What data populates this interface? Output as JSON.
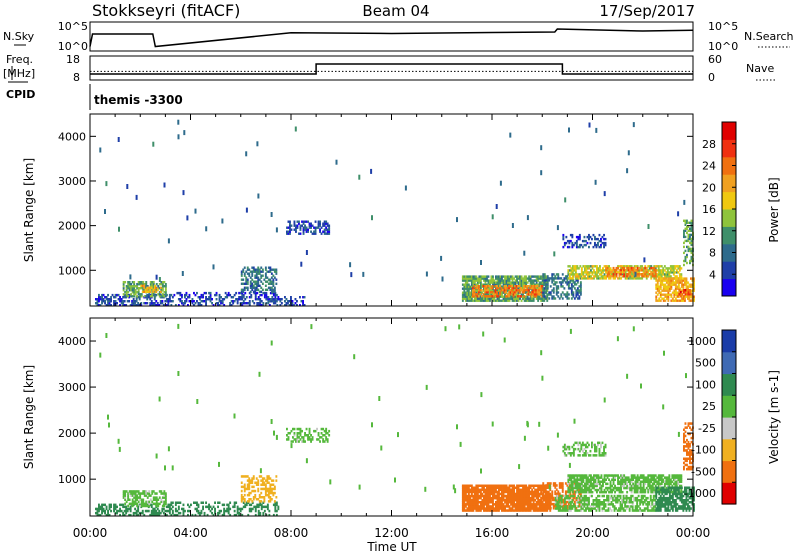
{
  "header": {
    "station": "Stokkseyri (fitACF)",
    "beam": "Beam 04",
    "date": "17/Sep/2017"
  },
  "strip_panels": {
    "nsky_label": "N.Sky",
    "nsky_ticks": [
      "10^5",
      "10^0"
    ],
    "nsearch_label": "N.Search",
    "nsearch_ticks": [
      "10^5",
      "10^0"
    ],
    "freq_label": "Freq.",
    "freq_unit": "[MHz]",
    "freq_ticks": [
      "18",
      "8"
    ],
    "nave_label": "Nave",
    "nave_ticks": [
      "60",
      "0"
    ],
    "cpid_label": "CPID",
    "cpid_value": "themis -3300"
  },
  "axes": {
    "ylabel": "Slant Range [km]",
    "xlabel": "Time UT",
    "y_ticks": [
      "4000",
      "3000",
      "2000",
      "1000"
    ],
    "x_ticks": [
      "00:00",
      "04:00",
      "08:00",
      "12:00",
      "16:00",
      "20:00",
      "00:00"
    ]
  },
  "colorbars": {
    "power": {
      "label": "Power [dB]",
      "ticks": [
        "28",
        "24",
        "20",
        "16",
        "12",
        "8",
        "4"
      ],
      "colors": [
        "#1a00f0",
        "#1f3fa8",
        "#2e6b8c",
        "#3f8f6a",
        "#8fc43c",
        "#f0c810",
        "#f0a020",
        "#f07010",
        "#f03010",
        "#e00000"
      ]
    },
    "velocity": {
      "label": "Velocity [m s-1]",
      "ticks": [
        "1000",
        "500",
        "100",
        "25",
        "-25",
        "-100",
        "-500",
        "-1000"
      ],
      "colors": [
        "#1a3ca8",
        "#3f6ab4",
        "#2f8a50",
        "#55b83c",
        "#c8c8c8",
        "#f0b020",
        "#f07010",
        "#e00000"
      ]
    }
  },
  "chart_data": [
    {
      "type": "line",
      "title": "N.Sky / N.Search",
      "x_unit": "hours UT",
      "xlim": [
        0,
        24
      ],
      "series": [
        {
          "name": "N.Sky",
          "x": [
            0,
            0.1,
            2.5,
            2.6,
            8,
            12,
            16,
            18.5,
            18.6,
            22,
            24
          ],
          "y": [
            0.1,
            0.6,
            0.6,
            0.1,
            0.65,
            0.62,
            0.66,
            0.68,
            0.8,
            0.72,
            0.75
          ]
        }
      ]
    },
    {
      "type": "line",
      "title": "Freq / Nave",
      "xlim": [
        0,
        24
      ],
      "series": [
        {
          "name": "Freq. [MHz]",
          "x": [
            0,
            9,
            9,
            18.8,
            18.8,
            24
          ],
          "y": [
            10,
            10,
            15,
            15,
            10,
            10
          ]
        },
        {
          "name": "Nave",
          "x": [
            0,
            24
          ],
          "y": [
            20,
            20
          ]
        }
      ]
    },
    {
      "type": "heatmap",
      "title": "Power [dB]",
      "xlabel": "Time UT",
      "ylabel": "Slant Range [km]",
      "xlim": [
        0,
        24
      ],
      "ylim": [
        200,
        4500
      ],
      "blobs": [
        {
          "t0": 0.2,
          "t1": 3.2,
          "r0": 200,
          "r1": 450,
          "level": 4,
          "density": 0.55
        },
        {
          "t0": 1.3,
          "t1": 3.0,
          "r0": 400,
          "r1": 750,
          "level": 12,
          "density": 0.6
        },
        {
          "t0": 2.0,
          "t1": 2.8,
          "r0": 500,
          "r1": 650,
          "level": 20,
          "density": 0.55
        },
        {
          "t0": 3.2,
          "t1": 7.5,
          "r0": 200,
          "r1": 500,
          "level": 4,
          "density": 0.45
        },
        {
          "t0": 6.0,
          "t1": 7.4,
          "r0": 500,
          "r1": 1050,
          "level": 8,
          "density": 0.5
        },
        {
          "t0": 7.0,
          "t1": 8.5,
          "r0": 200,
          "r1": 400,
          "level": 4,
          "density": 0.4
        },
        {
          "t0": 7.8,
          "t1": 9.5,
          "r0": 1800,
          "r1": 2100,
          "level": 4,
          "density": 0.5
        },
        {
          "t0": 14.8,
          "t1": 18.2,
          "r0": 300,
          "r1": 850,
          "level": 12,
          "density": 0.85
        },
        {
          "t0": 15.2,
          "t1": 18.0,
          "r0": 400,
          "r1": 650,
          "level": 24,
          "density": 0.6
        },
        {
          "t0": 18.0,
          "t1": 19.5,
          "r0": 350,
          "r1": 900,
          "level": 8,
          "density": 0.5
        },
        {
          "t0": 19.0,
          "t1": 23.5,
          "r0": 800,
          "r1": 1100,
          "level": 16,
          "density": 0.7
        },
        {
          "t0": 20.5,
          "t1": 22.5,
          "r0": 850,
          "r1": 1050,
          "level": 24,
          "density": 0.55
        },
        {
          "t0": 22.5,
          "t1": 24.0,
          "r0": 300,
          "r1": 800,
          "level": 20,
          "density": 0.75
        },
        {
          "t0": 23.3,
          "t1": 23.9,
          "r0": 400,
          "r1": 550,
          "level": 28,
          "density": 0.5
        },
        {
          "t0": 18.8,
          "t1": 20.5,
          "r0": 1500,
          "r1": 1800,
          "level": 4,
          "density": 0.45
        },
        {
          "t0": 23.6,
          "t1": 24.0,
          "r0": 1100,
          "r1": 2100,
          "level": 12,
          "density": 0.5
        }
      ]
    },
    {
      "type": "heatmap",
      "title": "Velocity [m s-1]",
      "xlabel": "Time UT",
      "ylabel": "Slant Range [km]",
      "xlim": [
        0,
        24
      ],
      "ylim": [
        200,
        4500
      ],
      "blobs": [
        {
          "t0": 0.2,
          "t1": 3.2,
          "r0": 200,
          "r1": 450,
          "level": 100,
          "density": 0.5
        },
        {
          "t0": 1.3,
          "t1": 3.0,
          "r0": 400,
          "r1": 750,
          "level": 25,
          "density": 0.55
        },
        {
          "t0": 3.2,
          "t1": 7.5,
          "r0": 200,
          "r1": 500,
          "level": 100,
          "density": 0.4
        },
        {
          "t0": 6.0,
          "t1": 7.4,
          "r0": 500,
          "r1": 1050,
          "level": -100,
          "density": 0.45
        },
        {
          "t0": 7.8,
          "t1": 9.5,
          "r0": 1800,
          "r1": 2100,
          "level": 25,
          "density": 0.45
        },
        {
          "t0": 14.8,
          "t1": 18.3,
          "r0": 300,
          "r1": 850,
          "level": -500,
          "density": 0.9
        },
        {
          "t0": 18.0,
          "t1": 19.5,
          "r0": 350,
          "r1": 900,
          "level": -500,
          "density": 0.5
        },
        {
          "t0": 19.0,
          "t1": 23.5,
          "r0": 700,
          "r1": 1100,
          "level": 25,
          "density": 0.75
        },
        {
          "t0": 18.5,
          "t1": 22.5,
          "r0": 300,
          "r1": 650,
          "level": 25,
          "density": 0.6
        },
        {
          "t0": 22.5,
          "t1": 24.0,
          "r0": 300,
          "r1": 800,
          "level": 100,
          "density": 0.75
        },
        {
          "t0": 23.6,
          "t1": 24.0,
          "r0": 1200,
          "r1": 2200,
          "level": -500,
          "density": 0.5
        },
        {
          "t0": 18.8,
          "t1": 20.5,
          "r0": 1500,
          "r1": 1800,
          "level": 25,
          "density": 0.45
        }
      ]
    }
  ]
}
